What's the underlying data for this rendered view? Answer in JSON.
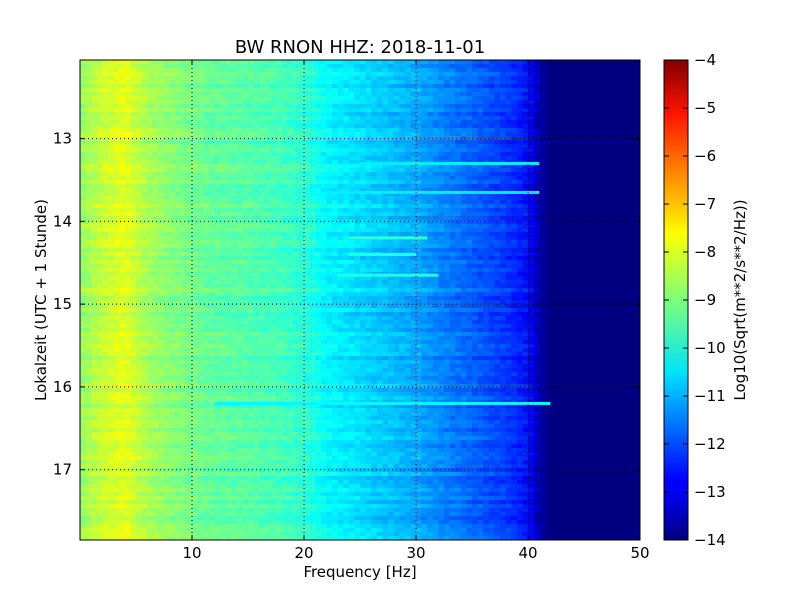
{
  "chart_data": {
    "type": "heatmap",
    "title": "BW RNON HHZ: 2018-11-01",
    "xlabel": "Frequency [Hz]",
    "ylabel": "Lokalzeit (UTC + 1 Stunde)",
    "xlim": [
      0,
      50
    ],
    "ylim": [
      12.05,
      17.85
    ],
    "y_inverted": true,
    "x_ticks": [
      10,
      20,
      30,
      40,
      50
    ],
    "x_tick_labels": [
      "10",
      "20",
      "30",
      "40",
      "50"
    ],
    "y_ticks": [
      13,
      14,
      15,
      16,
      17
    ],
    "y_tick_labels": [
      "13",
      "14",
      "15",
      "16",
      "17"
    ],
    "grid": true,
    "colormap": "jet",
    "colorbar": {
      "label": "Log10(Sqrt(m**2/s**2/Hz))",
      "range": [
        -14,
        -4
      ],
      "ticks": [
        -4,
        -5,
        -6,
        -7,
        -8,
        -9,
        -10,
        -11,
        -12,
        -13,
        -14
      ],
      "tick_labels": [
        "−4",
        "−5",
        "−6",
        "−7",
        "−8",
        "−9",
        "−10",
        "−11",
        "−12",
        "−13",
        "−14"
      ]
    },
    "spectrum_profile": {
      "frequency_hz": [
        0,
        2,
        4,
        6,
        8,
        10,
        12,
        15,
        18,
        20,
        22,
        25,
        28,
        30,
        32,
        35,
        38,
        40,
        41,
        42,
        50
      ],
      "log10_amplitude": [
        -8.8,
        -8.3,
        -8.0,
        -8.6,
        -8.9,
        -9.1,
        -9.3,
        -9.4,
        -9.6,
        -9.8,
        -10.3,
        -10.6,
        -10.9,
        -11.1,
        -11.4,
        -11.8,
        -12.2,
        -12.6,
        -13.6,
        -14.0,
        -14.0
      ]
    },
    "events": [
      {
        "time": 14.2,
        "f_from": 24,
        "f_to": 31,
        "log10_amplitude": -9.8
      },
      {
        "time": 14.4,
        "f_from": 24,
        "f_to": 30,
        "log10_amplitude": -9.9
      },
      {
        "time": 14.65,
        "f_from": 23,
        "f_to": 32,
        "log10_amplitude": -10.0
      },
      {
        "time": 13.3,
        "f_from": 25,
        "f_to": 41,
        "log10_amplitude": -10.4
      },
      {
        "time": 13.65,
        "f_from": 22,
        "f_to": 41,
        "log10_amplitude": -10.4
      },
      {
        "time": 16.2,
        "f_from": 12,
        "f_to": 42,
        "log10_amplitude": -10.3
      }
    ]
  }
}
